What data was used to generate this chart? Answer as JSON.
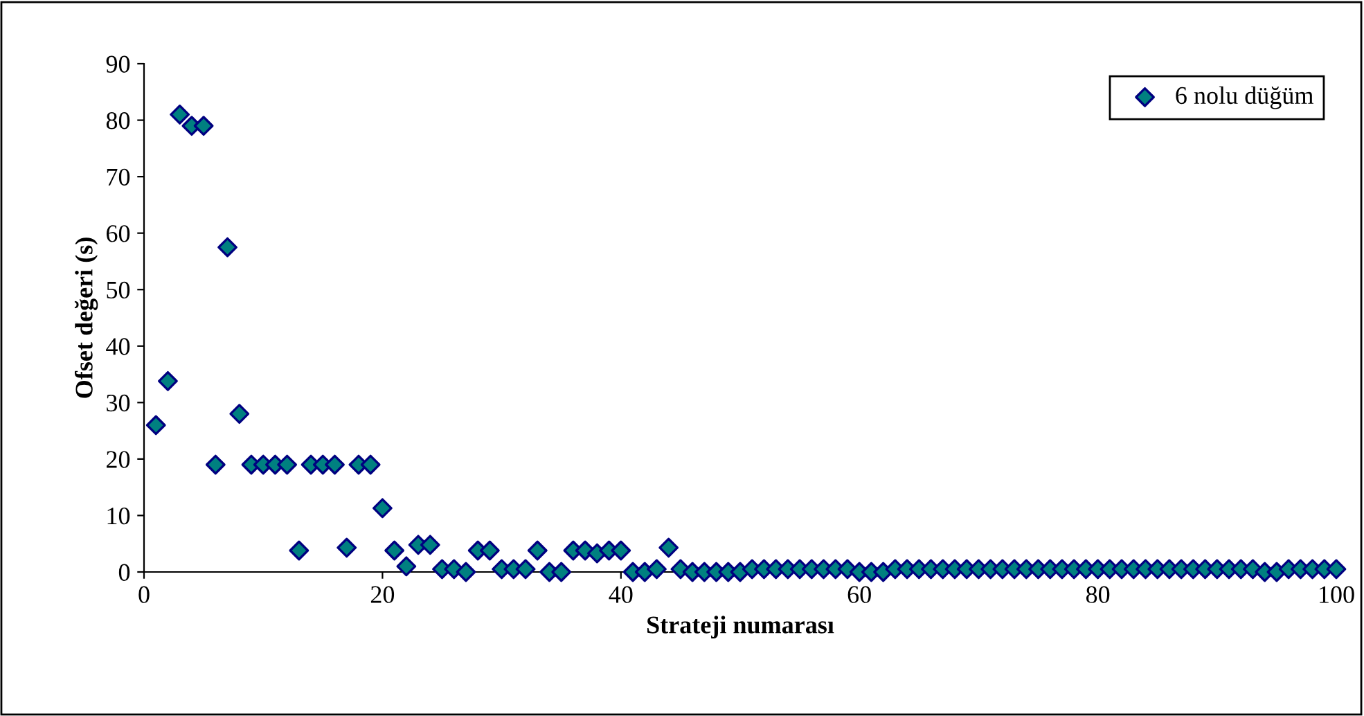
{
  "chart_data": {
    "type": "scatter",
    "xlabel": "Strateji numarası",
    "ylabel": "Ofset değeri (s)",
    "xlim": [
      0,
      100
    ],
    "xticks": [
      0,
      20,
      40,
      60,
      80,
      100
    ],
    "ylim": [
      0,
      90
    ],
    "yticks": [
      0,
      10,
      20,
      30,
      40,
      50,
      60,
      70,
      80,
      90
    ],
    "grid": false,
    "legend": "top right",
    "marker": "diamond",
    "series": [
      {
        "name": "6 nolu düğüm",
        "color": "#008080",
        "x": [
          1,
          2,
          3,
          4,
          5,
          6,
          7,
          8,
          9,
          10,
          11,
          12,
          13,
          14,
          15,
          16,
          17,
          18,
          19,
          20,
          21,
          22,
          23,
          24,
          25,
          26,
          27,
          28,
          29,
          30,
          31,
          32,
          33,
          34,
          35,
          36,
          37,
          38,
          39,
          40,
          41,
          42,
          43,
          44,
          45,
          46,
          47,
          48,
          49,
          50,
          51,
          52,
          53,
          54,
          55,
          56,
          57,
          58,
          59,
          60,
          61,
          62,
          63,
          64,
          65,
          66,
          67,
          68,
          69,
          70,
          71,
          72,
          73,
          74,
          75,
          76,
          77,
          78,
          79,
          80,
          81,
          82,
          83,
          84,
          85,
          86,
          87,
          88,
          89,
          90,
          91,
          92,
          93,
          94,
          95,
          96,
          97,
          98,
          99,
          100
        ],
        "values": [
          26,
          33.8,
          81,
          79,
          79,
          19,
          57.5,
          28,
          19,
          19,
          19,
          19,
          3.8,
          19,
          19,
          19,
          4.3,
          19,
          19,
          11.3,
          3.8,
          1,
          4.8,
          4.8,
          0.5,
          0.5,
          0,
          3.8,
          3.8,
          0.5,
          0.5,
          0.5,
          3.8,
          0,
          0,
          3.8,
          3.8,
          3.3,
          3.8,
          3.8,
          0,
          0,
          0.5,
          4.3,
          0.5,
          0,
          0,
          0,
          0,
          0,
          0.5,
          0.5,
          0.5,
          0.5,
          0.5,
          0.5,
          0.5,
          0.5,
          0.5,
          0,
          0,
          0,
          0.5,
          0.5,
          0.5,
          0.5,
          0.5,
          0.5,
          0.5,
          0.5,
          0.5,
          0.5,
          0.5,
          0.5,
          0.5,
          0.5,
          0.5,
          0.5,
          0.5,
          0.5,
          0.5,
          0.5,
          0.5,
          0.5,
          0.5,
          0.5,
          0.5,
          0.5,
          0.5,
          0.5,
          0.5,
          0.5,
          0.5,
          0,
          0,
          0.5,
          0.5,
          0.5,
          0.5,
          0.5
        ]
      }
    ]
  }
}
